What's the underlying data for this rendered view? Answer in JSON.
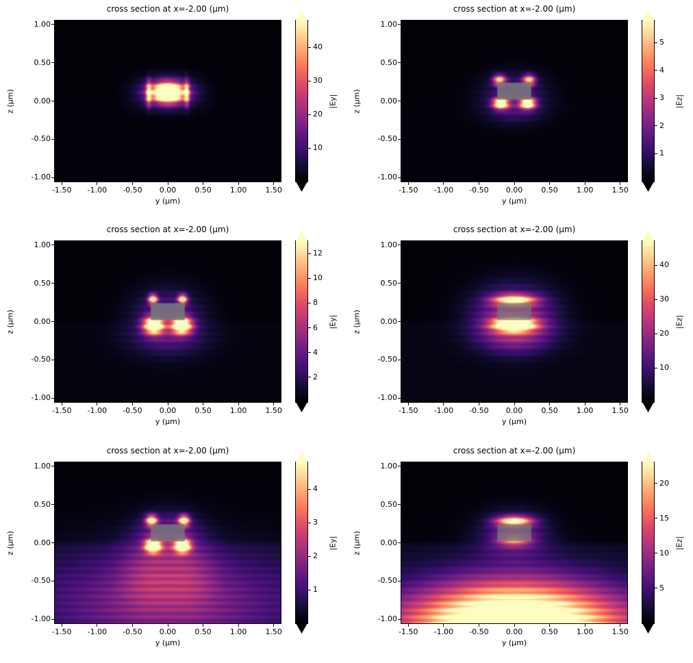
{
  "figure": {
    "background": "#ffffff"
  },
  "colormap": {
    "name": "magma",
    "stops": [
      [
        0.0,
        "#000004"
      ],
      [
        0.1,
        "#140e36"
      ],
      [
        0.2,
        "#3b0f70"
      ],
      [
        0.3,
        "#641a80"
      ],
      [
        0.4,
        "#8c2981"
      ],
      [
        0.5,
        "#b73779"
      ],
      [
        0.6,
        "#de4968"
      ],
      [
        0.7,
        "#f7705c"
      ],
      [
        0.8,
        "#fe9f6d"
      ],
      [
        0.9,
        "#fecf92"
      ],
      [
        1.0,
        "#fcfdbf"
      ]
    ]
  },
  "chart_data": [
    {
      "type": "heatmap",
      "title": "cross section at x=-2.00 (μm)",
      "xlabel": "y (μm)",
      "ylabel": "z (μm)",
      "colorbar_label": "|Ey|",
      "xlim": [
        -1.6,
        1.6
      ],
      "ylim": [
        -1.05,
        1.05
      ],
      "xticks": [
        -1.5,
        -1.0,
        -0.5,
        0.0,
        0.5,
        1.0,
        1.5
      ],
      "xtick_labels": [
        "-1.50",
        "-1.00",
        "-0.50",
        "0.00",
        "0.50",
        "1.00",
        "1.50"
      ],
      "yticks": [
        1.0,
        0.5,
        0.0,
        -0.5,
        -1.0
      ],
      "ytick_labels": [
        "1.00",
        "0.50",
        "0.00",
        "-0.50",
        "-1.00"
      ],
      "vmax": 48,
      "colorbar_ticks": [
        10,
        20,
        30,
        40
      ],
      "colorbar_tick_labels": [
        "10",
        "20",
        "30",
        "40"
      ],
      "colorbar_extend": "both",
      "waveguide": {
        "show": false,
        "y": [
          -0.24,
          0.24
        ],
        "z": [
          0.02,
          0.24
        ],
        "color": "#75757c",
        "alpha": 0.88
      },
      "field": {
        "floor_above": 0.006,
        "floor_below": 0.012,
        "ripple": {
          "period": 0.09,
          "amp": 0.16
        },
        "gamma": 1.0,
        "lobes": [
          {
            "y": 0.0,
            "z": 0.11,
            "sy": 0.14,
            "sz": 0.08,
            "a": 1.55
          },
          {
            "y": 0.0,
            "z": 0.11,
            "sy": 0.27,
            "sz": 0.135,
            "a": 0.5
          },
          {
            "y": -0.27,
            "z": 0.1,
            "sy": 0.025,
            "sz": 0.105,
            "a": 0.8
          },
          {
            "y": 0.27,
            "z": 0.1,
            "sy": 0.025,
            "sz": 0.105,
            "a": 0.8
          }
        ]
      }
    },
    {
      "type": "heatmap",
      "title": "cross section at x=-2.00 (μm)",
      "xlabel": "y (μm)",
      "ylabel": "z (μm)",
      "colorbar_label": "|Ez|",
      "xlim": [
        -1.6,
        1.6
      ],
      "ylim": [
        -1.05,
        1.05
      ],
      "xticks": [
        -1.5,
        -1.0,
        -0.5,
        0.0,
        0.5,
        1.0,
        1.5
      ],
      "xtick_labels": [
        "-1.50",
        "-1.00",
        "-0.50",
        "0.00",
        "0.50",
        "1.00",
        "1.50"
      ],
      "yticks": [
        1.0,
        0.5,
        0.0,
        -0.5,
        -1.0
      ],
      "ytick_labels": [
        "1.00",
        "0.50",
        "0.00",
        "-0.50",
        "-1.00"
      ],
      "vmax": 5.8,
      "colorbar_ticks": [
        1,
        2,
        3,
        4,
        5
      ],
      "colorbar_tick_labels": [
        "1",
        "2",
        "3",
        "4",
        "5"
      ],
      "colorbar_extend": "both",
      "waveguide": {
        "show": true,
        "y": [
          -0.24,
          0.24
        ],
        "z": [
          0.02,
          0.24
        ],
        "color": "#75757c",
        "alpha": 0.9
      },
      "field": {
        "floor_above": 0.006,
        "floor_below": 0.012,
        "ripple": {
          "period": 0.09,
          "amp": 0.15
        },
        "gamma": 1.0,
        "lobes": [
          {
            "y": -0.21,
            "z": 0.27,
            "sy": 0.06,
            "sz": 0.05,
            "a": 0.85
          },
          {
            "y": 0.21,
            "z": 0.27,
            "sy": 0.06,
            "sz": 0.05,
            "a": 0.85
          },
          {
            "y": -0.19,
            "z": -0.03,
            "sy": 0.075,
            "sz": 0.05,
            "a": 1.2
          },
          {
            "y": 0.19,
            "z": -0.03,
            "sy": 0.075,
            "sz": 0.05,
            "a": 1.2
          },
          {
            "y": 0.0,
            "z": 0.12,
            "sy": 0.32,
            "sz": 0.18,
            "a": 0.22
          },
          {
            "y": 0.0,
            "z": -0.13,
            "sy": 0.3,
            "sz": 0.13,
            "a": 0.14
          }
        ]
      }
    },
    {
      "type": "heatmap",
      "title": "cross section at x=-2.00 (μm)",
      "xlabel": "y (μm)",
      "ylabel": "z (μm)",
      "colorbar_label": "|Ey|",
      "xlim": [
        -1.6,
        1.6
      ],
      "ylim": [
        -1.05,
        1.05
      ],
      "xticks": [
        -1.5,
        -1.0,
        -0.5,
        0.0,
        0.5,
        1.0,
        1.5
      ],
      "xtick_labels": [
        "-1.50",
        "-1.00",
        "-0.50",
        "0.00",
        "0.50",
        "1.00",
        "1.50"
      ],
      "yticks": [
        1.0,
        0.5,
        0.0,
        -0.5,
        -1.0
      ],
      "ytick_labels": [
        "1.00",
        "0.50",
        "0.00",
        "-0.50",
        "-1.00"
      ],
      "vmax": 13,
      "colorbar_ticks": [
        2,
        4,
        6,
        8,
        10,
        12
      ],
      "colorbar_tick_labels": [
        "2",
        "4",
        "6",
        "8",
        "10",
        "12"
      ],
      "colorbar_extend": "both",
      "waveguide": {
        "show": true,
        "y": [
          -0.24,
          0.24
        ],
        "z": [
          0.02,
          0.24
        ],
        "color": "#75757c",
        "alpha": 0.9
      },
      "field": {
        "floor_above": 0.008,
        "floor_below": 0.02,
        "ripple": {
          "period": 0.09,
          "amp": 0.16
        },
        "gamma": 1.0,
        "lobes": [
          {
            "y": -0.21,
            "z": 0.29,
            "sy": 0.045,
            "sz": 0.045,
            "a": 1.0
          },
          {
            "y": 0.21,
            "z": 0.29,
            "sy": 0.045,
            "sz": 0.045,
            "a": 1.0
          },
          {
            "y": -0.2,
            "z": -0.05,
            "sy": 0.095,
            "sz": 0.075,
            "a": 1.3
          },
          {
            "y": 0.2,
            "z": -0.05,
            "sy": 0.095,
            "sz": 0.075,
            "a": 1.3
          },
          {
            "y": 0.0,
            "z": 0.1,
            "sy": 0.33,
            "sz": 0.24,
            "a": 0.26
          },
          {
            "y": 0.0,
            "z": -0.22,
            "sy": 0.42,
            "sz": 0.18,
            "a": 0.16
          }
        ]
      }
    },
    {
      "type": "heatmap",
      "title": "cross section at x=-2.00 (μm)",
      "xlabel": "y (μm)",
      "ylabel": "z (μm)",
      "colorbar_label": "|Ez|",
      "xlim": [
        -1.6,
        1.6
      ],
      "ylim": [
        -1.05,
        1.05
      ],
      "xticks": [
        -1.5,
        -1.0,
        -0.5,
        0.0,
        0.5,
        1.0,
        1.5
      ],
      "xtick_labels": [
        "-1.50",
        "-1.00",
        "-0.50",
        "0.00",
        "0.50",
        "1.00",
        "1.50"
      ],
      "yticks": [
        1.0,
        0.5,
        0.0,
        -0.5,
        -1.0
      ],
      "ytick_labels": [
        "1.00",
        "0.50",
        "0.00",
        "-0.50",
        "-1.00"
      ],
      "vmax": 47,
      "colorbar_ticks": [
        10,
        20,
        30,
        40
      ],
      "colorbar_tick_labels": [
        "10",
        "20",
        "30",
        "40"
      ],
      "colorbar_extend": "both",
      "waveguide": {
        "show": true,
        "y": [
          -0.24,
          0.24
        ],
        "z": [
          0.02,
          0.24
        ],
        "color": "#75757c",
        "alpha": 0.72
      },
      "field": {
        "floor_above": 0.008,
        "floor_below": 0.03,
        "ripple": {
          "period": 0.09,
          "amp": 0.15
        },
        "gamma": 1.0,
        "lobes": [
          {
            "y": 0.0,
            "z": 0.28,
            "sy": 0.2,
            "sz": 0.048,
            "a": 0.95
          },
          {
            "y": 0.0,
            "z": -0.04,
            "sy": 0.19,
            "sz": 0.058,
            "a": 1.4
          },
          {
            "y": 0.0,
            "z": 0.1,
            "sy": 0.4,
            "sz": 0.26,
            "a": 0.42
          },
          {
            "y": 0.0,
            "z": -0.18,
            "sy": 0.36,
            "sz": 0.17,
            "a": 0.25
          }
        ]
      }
    },
    {
      "type": "heatmap",
      "title": "cross section at x=-2.00 (μm)",
      "xlabel": "y (μm)",
      "ylabel": "z (μm)",
      "colorbar_label": "|Ey|",
      "xlim": [
        -1.6,
        1.6
      ],
      "ylim": [
        -1.05,
        1.05
      ],
      "xticks": [
        -1.5,
        -1.0,
        -0.5,
        0.0,
        0.5,
        1.0,
        1.5
      ],
      "xtick_labels": [
        "-1.50",
        "-1.00",
        "-0.50",
        "0.00",
        "0.50",
        "1.00",
        "1.50"
      ],
      "yticks": [
        1.0,
        0.5,
        0.0,
        -0.5,
        -1.0
      ],
      "ytick_labels": [
        "1.00",
        "0.50",
        "0.00",
        "-0.50",
        "-1.00"
      ],
      "vmax": 4.8,
      "colorbar_ticks": [
        1,
        2,
        3,
        4
      ],
      "colorbar_tick_labels": [
        "1",
        "2",
        "3",
        "4"
      ],
      "colorbar_extend": "both",
      "waveguide": {
        "show": true,
        "y": [
          -0.24,
          0.24
        ],
        "z": [
          0.02,
          0.24
        ],
        "color": "#75757c",
        "alpha": 0.85
      },
      "field": {
        "floor_above": 0.008,
        "floor_below": 0.05,
        "ripple": {
          "period": 0.09,
          "amp": 0.14
        },
        "gamma": 1.0,
        "lobes": [
          {
            "y": -0.23,
            "z": 0.29,
            "sy": 0.055,
            "sz": 0.05,
            "a": 1.05
          },
          {
            "y": 0.23,
            "z": 0.29,
            "sy": 0.055,
            "sz": 0.05,
            "a": 1.05
          },
          {
            "y": -0.21,
            "z": -0.04,
            "sy": 0.075,
            "sz": 0.06,
            "a": 1.3
          },
          {
            "y": 0.21,
            "z": -0.04,
            "sy": 0.075,
            "sz": 0.06,
            "a": 1.3
          },
          {
            "y": 0.0,
            "z": 0.12,
            "sy": 0.3,
            "sz": 0.2,
            "a": 0.28
          },
          {
            "y": 0.0,
            "z": -0.8,
            "sy": 1.35,
            "sz": 0.5,
            "a": 0.33
          },
          {
            "y": -0.3,
            "z": -0.4,
            "sy": 0.28,
            "sz": 0.3,
            "a": 0.18
          },
          {
            "y": 0.3,
            "z": -0.4,
            "sy": 0.28,
            "sz": 0.3,
            "a": 0.18
          }
        ]
      }
    },
    {
      "type": "heatmap",
      "title": "cross section at x=-2.00 (μm)",
      "xlabel": "y (μm)",
      "ylabel": "z (μm)",
      "colorbar_label": "|Ez|",
      "xlim": [
        -1.6,
        1.6
      ],
      "ylim": [
        -1.05,
        1.05
      ],
      "xticks": [
        -1.5,
        -1.0,
        -0.5,
        0.0,
        0.5,
        1.0,
        1.5
      ],
      "xtick_labels": [
        "-1.50",
        "-1.00",
        "-0.50",
        "0.00",
        "0.50",
        "1.00",
        "1.50"
      ],
      "yticks": [
        1.0,
        0.5,
        0.0,
        -0.5,
        -1.0
      ],
      "ytick_labels": [
        "1.00",
        "0.50",
        "0.00",
        "-0.50",
        "-1.00"
      ],
      "vmax": 23,
      "colorbar_ticks": [
        5,
        10,
        15,
        20
      ],
      "colorbar_tick_labels": [
        "5",
        "10",
        "15",
        "20"
      ],
      "colorbar_extend": "both",
      "waveguide": {
        "show": true,
        "y": [
          -0.24,
          0.24
        ],
        "z": [
          0.02,
          0.24
        ],
        "color": "#75757c",
        "alpha": 0.78
      },
      "field": {
        "floor_above": 0.008,
        "floor_below": 0.05,
        "ripple": {
          "period": 0.09,
          "amp": 0.12
        },
        "gamma": 1.0,
        "lobes": [
          {
            "y": 0.0,
            "z": 0.28,
            "sy": 0.17,
            "sz": 0.047,
            "a": 0.95
          },
          {
            "y": 0.0,
            "z": 0.04,
            "sy": 0.15,
            "sz": 0.05,
            "a": 0.55
          },
          {
            "y": 0.0,
            "z": 0.12,
            "sy": 0.33,
            "sz": 0.2,
            "a": 0.32
          },
          {
            "y": 0.0,
            "z": -1.15,
            "sy": 0.85,
            "sz": 0.42,
            "a": 1.2
          },
          {
            "y": 0.0,
            "z": -1.1,
            "sy": 1.9,
            "sz": 0.38,
            "a": 0.45
          }
        ]
      }
    }
  ]
}
